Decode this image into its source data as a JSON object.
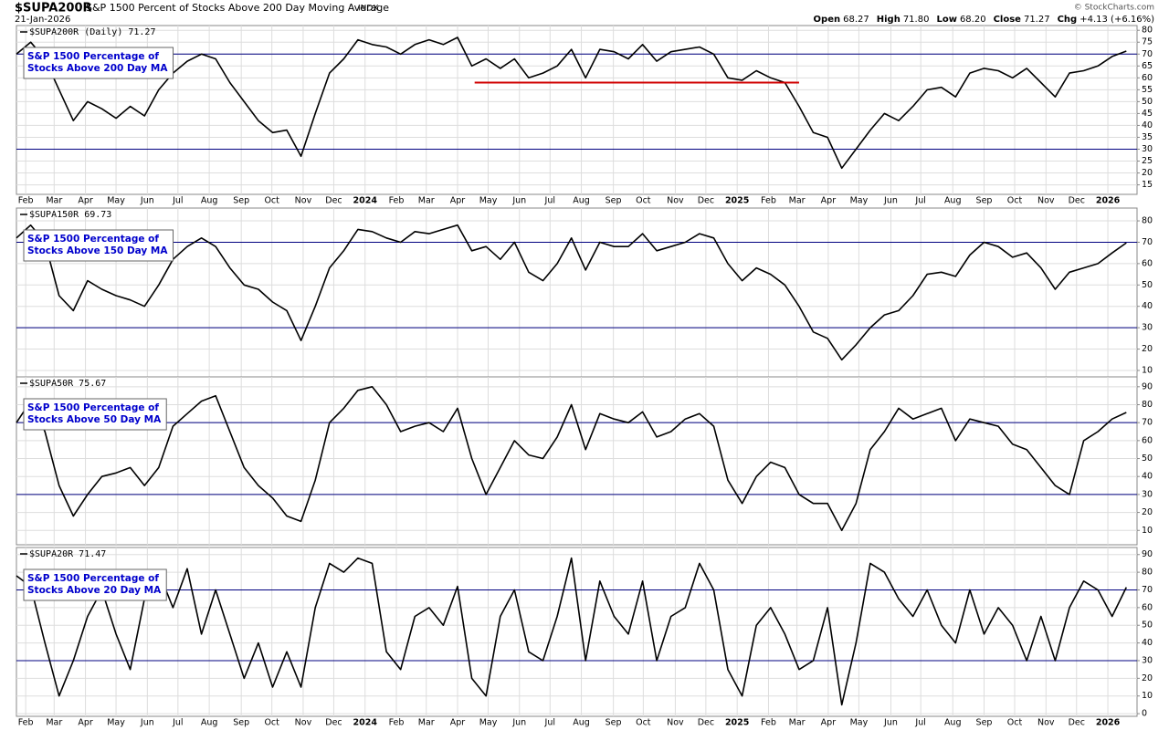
{
  "header": {
    "symbol": "$SUPA200R",
    "name": "S&P 1500 Percent of Stocks Above 200 Day Moving Average",
    "exchange": "INDX",
    "copyright": "© StockCharts.com",
    "date": "21-Jan-2026",
    "quote": [
      {
        "label": "Open",
        "value": "68.27"
      },
      {
        "label": "High",
        "value": "71.80"
      },
      {
        "label": "Low",
        "value": "68.20"
      },
      {
        "label": "Close",
        "value": "71.27"
      },
      {
        "label": "Chg",
        "value": "+4.13 (+6.16%)"
      }
    ]
  },
  "chart_data": [
    {
      "type": "line",
      "title": "$SUPA200R (Daily) 71.27",
      "annotation": [
        "S&P 1500 Percentage of",
        "Stocks Above 200 Day MA"
      ],
      "color": "#000000",
      "grid": true,
      "hlines": [
        70,
        30
      ],
      "hline_color": "#000080",
      "segment": {
        "x": [
          64.4,
          110
        ],
        "y": 58,
        "color": "#d00000"
      },
      "xlim": [
        0,
        157.5
      ],
      "ylim": [
        11,
        82
      ],
      "yticks": [
        15,
        20,
        25,
        30,
        35,
        40,
        45,
        50,
        55,
        60,
        65,
        70,
        75,
        80
      ],
      "xticks": [
        {
          "value": 1.3,
          "label": "Feb"
        },
        {
          "value": 5.3,
          "label": "Mar"
        },
        {
          "value": 9.7,
          "label": "Apr"
        },
        {
          "value": 14,
          "label": "May"
        },
        {
          "value": 18.4,
          "label": "Jun"
        },
        {
          "value": 22.7,
          "label": "Jul"
        },
        {
          "value": 27.1,
          "label": "Aug"
        },
        {
          "value": 31.6,
          "label": "Sep"
        },
        {
          "value": 35.9,
          "label": "Oct"
        },
        {
          "value": 40.3,
          "label": "Nov"
        },
        {
          "value": 44.6,
          "label": "Dec"
        },
        {
          "value": 49,
          "label": "2024"
        },
        {
          "value": 53.4,
          "label": "Feb"
        },
        {
          "value": 57.6,
          "label": "Mar"
        },
        {
          "value": 62,
          "label": "Apr"
        },
        {
          "value": 66.3,
          "label": "May"
        },
        {
          "value": 70.7,
          "label": "Jun"
        },
        {
          "value": 75,
          "label": "Jul"
        },
        {
          "value": 79.4,
          "label": "Aug"
        },
        {
          "value": 83.9,
          "label": "Sep"
        },
        {
          "value": 88.1,
          "label": "Oct"
        },
        {
          "value": 92.6,
          "label": "Nov"
        },
        {
          "value": 96.9,
          "label": "Dec"
        },
        {
          "value": 101.3,
          "label": "2025"
        },
        {
          "value": 105.7,
          "label": "Feb"
        },
        {
          "value": 109.7,
          "label": "Mar"
        },
        {
          "value": 114.1,
          "label": "Apr"
        },
        {
          "value": 118.4,
          "label": "May"
        },
        {
          "value": 122.9,
          "label": "Jun"
        },
        {
          "value": 127.1,
          "label": "Jul"
        },
        {
          "value": 131.6,
          "label": "Aug"
        },
        {
          "value": 136,
          "label": "Sep"
        },
        {
          "value": 140.3,
          "label": "Oct"
        },
        {
          "value": 144.7,
          "label": "Nov"
        },
        {
          "value": 149,
          "label": "Dec"
        },
        {
          "value": 153.4,
          "label": "2026"
        }
      ],
      "x": [
        0,
        2,
        4,
        6,
        8,
        10,
        12,
        14,
        16,
        18,
        20,
        22,
        24,
        26,
        28,
        30,
        32,
        34,
        36,
        38,
        40,
        42,
        44,
        46,
        48,
        50,
        52,
        54,
        56,
        58,
        60,
        62,
        64,
        66,
        68,
        70,
        72,
        74,
        76,
        78,
        80,
        82,
        84,
        86,
        88,
        90,
        92,
        94,
        96,
        98,
        100,
        102,
        104,
        106,
        108,
        110,
        112,
        114,
        116,
        118,
        120,
        122,
        124,
        126,
        128,
        130,
        132,
        134,
        136,
        138,
        140,
        142,
        144,
        146,
        148,
        150,
        152,
        154,
        156
      ],
      "values": [
        70,
        75,
        68,
        55,
        42,
        50,
        47,
        43,
        48,
        44,
        55,
        62,
        67,
        70,
        68,
        58,
        50,
        42,
        37,
        38,
        27,
        45,
        62,
        68,
        76,
        74,
        73,
        70,
        74,
        76,
        74,
        77,
        65,
        68,
        64,
        68,
        60,
        62,
        65,
        72,
        60,
        72,
        71,
        68,
        74,
        67,
        71,
        72,
        73,
        70,
        60,
        59,
        63,
        60,
        58,
        48,
        37,
        35,
        22,
        30,
        38,
        45,
        42,
        48,
        55,
        56,
        52,
        62,
        64,
        63,
        60,
        64,
        58,
        52,
        62,
        63,
        65,
        69,
        71.27
      ]
    },
    {
      "type": "line",
      "title": "$SUPA150R 69.73",
      "annotation": [
        "S&P 1500 Percentage of",
        "Stocks Above 150 Day MA"
      ],
      "color": "#000000",
      "grid": true,
      "hlines": [
        70,
        30
      ],
      "hline_color": "#000080",
      "xlim": [
        0,
        157.5
      ],
      "ylim": [
        7,
        86
      ],
      "yticks": [
        10,
        20,
        30,
        40,
        50,
        60,
        70,
        80
      ],
      "xticks": [
        1.3,
        5.3,
        9.7,
        14,
        18.4,
        22.7,
        27.1,
        31.6,
        35.9,
        40.3,
        44.6,
        49,
        53.4,
        57.6,
        62,
        66.3,
        70.7,
        75,
        79.4,
        83.9,
        88.1,
        92.6,
        96.9,
        101.3,
        105.7,
        109.7,
        114.1,
        118.4,
        122.9,
        127.1,
        131.6,
        136,
        140.3,
        144.7,
        149,
        153.4
      ],
      "x": [
        0,
        2,
        4,
        6,
        8,
        10,
        12,
        14,
        16,
        18,
        20,
        22,
        24,
        26,
        28,
        30,
        32,
        34,
        36,
        38,
        40,
        42,
        44,
        46,
        48,
        50,
        52,
        54,
        56,
        58,
        60,
        62,
        64,
        66,
        68,
        70,
        72,
        74,
        76,
        78,
        80,
        82,
        84,
        86,
        88,
        90,
        92,
        94,
        96,
        98,
        100,
        102,
        104,
        106,
        108,
        110,
        112,
        114,
        116,
        118,
        120,
        122,
        124,
        126,
        128,
        130,
        132,
        134,
        136,
        138,
        140,
        142,
        144,
        146,
        148,
        150,
        152,
        154,
        156
      ],
      "values": [
        72,
        78,
        70,
        45,
        38,
        52,
        48,
        45,
        43,
        40,
        50,
        62,
        68,
        72,
        68,
        58,
        50,
        48,
        42,
        38,
        24,
        40,
        58,
        66,
        76,
        75,
        72,
        70,
        75,
        74,
        76,
        78,
        66,
        68,
        62,
        70,
        56,
        52,
        60,
        72,
        57,
        70,
        68,
        68,
        74,
        66,
        68,
        70,
        74,
        72,
        60,
        52,
        58,
        55,
        50,
        40,
        28,
        25,
        15,
        22,
        30,
        36,
        38,
        45,
        55,
        56,
        54,
        64,
        70,
        68,
        63,
        65,
        58,
        48,
        56,
        58,
        60,
        65,
        69.73
      ]
    },
    {
      "type": "line",
      "title": "$SUPA50R 75.67",
      "annotation": [
        "S&P 1500 Percentage of",
        "Stocks Above 50 Day MA"
      ],
      "color": "#000000",
      "grid": true,
      "hlines": [
        70,
        30
      ],
      "hline_color": "#000080",
      "xlim": [
        0,
        157.5
      ],
      "ylim": [
        2,
        95.5
      ],
      "yticks": [
        10,
        20,
        30,
        40,
        50,
        60,
        70,
        80,
        90
      ],
      "xticks": [
        1.3,
        5.3,
        9.7,
        14,
        18.4,
        22.7,
        27.1,
        31.6,
        35.9,
        40.3,
        44.6,
        49,
        53.4,
        57.6,
        62,
        66.3,
        70.7,
        75,
        79.4,
        83.9,
        88.1,
        92.6,
        96.9,
        101.3,
        105.7,
        109.7,
        114.1,
        118.4,
        122.9,
        127.1,
        131.6,
        136,
        140.3,
        144.7,
        149,
        153.4
      ],
      "x": [
        0,
        2,
        4,
        6,
        8,
        10,
        12,
        14,
        16,
        18,
        20,
        22,
        24,
        26,
        28,
        30,
        32,
        34,
        36,
        38,
        40,
        42,
        44,
        46,
        48,
        50,
        52,
        54,
        56,
        58,
        60,
        62,
        64,
        66,
        68,
        70,
        72,
        74,
        76,
        78,
        80,
        82,
        84,
        86,
        88,
        90,
        92,
        94,
        96,
        98,
        100,
        102,
        104,
        106,
        108,
        110,
        112,
        114,
        116,
        118,
        120,
        122,
        124,
        126,
        128,
        130,
        132,
        134,
        136,
        138,
        140,
        142,
        144,
        146,
        148,
        150,
        152,
        154,
        156
      ],
      "values": [
        70,
        82,
        65,
        35,
        18,
        30,
        40,
        42,
        45,
        35,
        45,
        68,
        75,
        82,
        85,
        65,
        45,
        35,
        28,
        18,
        15,
        38,
        70,
        78,
        88,
        90,
        80,
        65,
        68,
        70,
        65,
        78,
        50,
        30,
        45,
        60,
        52,
        50,
        62,
        80,
        55,
        75,
        72,
        70,
        76,
        62,
        65,
        72,
        75,
        68,
        38,
        25,
        40,
        48,
        45,
        30,
        25,
        25,
        10,
        25,
        55,
        65,
        78,
        72,
        75,
        78,
        60,
        72,
        70,
        68,
        58,
        55,
        45,
        35,
        30,
        60,
        65,
        72,
        75.67
      ]
    },
    {
      "type": "line",
      "title": "$SUPA20R 71.47",
      "annotation": [
        "S&P 1500 Percentage of",
        "Stocks Above 20 Day MA"
      ],
      "color": "#000000",
      "grid": true,
      "hlines": [
        70,
        30
      ],
      "hline_color": "#000080",
      "xlim": [
        0,
        157.5
      ],
      "ylim": [
        -1.5,
        94
      ],
      "yticks": [
        0,
        10,
        20,
        30,
        40,
        50,
        60,
        70,
        80,
        90
      ],
      "xticks": [
        {
          "value": 1.3,
          "label": "Feb"
        },
        {
          "value": 5.3,
          "label": "Mar"
        },
        {
          "value": 9.7,
          "label": "Apr"
        },
        {
          "value": 14,
          "label": "May"
        },
        {
          "value": 18.4,
          "label": "Jun"
        },
        {
          "value": 22.7,
          "label": "Jul"
        },
        {
          "value": 27.1,
          "label": "Aug"
        },
        {
          "value": 31.6,
          "label": "Sep"
        },
        {
          "value": 35.9,
          "label": "Oct"
        },
        {
          "value": 40.3,
          "label": "Nov"
        },
        {
          "value": 44.6,
          "label": "Dec"
        },
        {
          "value": 49,
          "label": "2024"
        },
        {
          "value": 53.4,
          "label": "Feb"
        },
        {
          "value": 57.6,
          "label": "Mar"
        },
        {
          "value": 62,
          "label": "Apr"
        },
        {
          "value": 66.3,
          "label": "May"
        },
        {
          "value": 70.7,
          "label": "Jun"
        },
        {
          "value": 75,
          "label": "Jul"
        },
        {
          "value": 79.4,
          "label": "Aug"
        },
        {
          "value": 83.9,
          "label": "Sep"
        },
        {
          "value": 88.1,
          "label": "Oct"
        },
        {
          "value": 92.6,
          "label": "Nov"
        },
        {
          "value": 96.9,
          "label": "Dec"
        },
        {
          "value": 101.3,
          "label": "2025"
        },
        {
          "value": 105.7,
          "label": "Feb"
        },
        {
          "value": 109.7,
          "label": "Mar"
        },
        {
          "value": 114.1,
          "label": "Apr"
        },
        {
          "value": 118.4,
          "label": "May"
        },
        {
          "value": 122.9,
          "label": "Jun"
        },
        {
          "value": 127.1,
          "label": "Jul"
        },
        {
          "value": 131.6,
          "label": "Aug"
        },
        {
          "value": 136,
          "label": "Sep"
        },
        {
          "value": 140.3,
          "label": "Oct"
        },
        {
          "value": 144.7,
          "label": "Nov"
        },
        {
          "value": 149,
          "label": "Dec"
        },
        {
          "value": 153.4,
          "label": "2026"
        }
      ],
      "x": [
        0,
        2,
        4,
        6,
        8,
        10,
        12,
        14,
        16,
        18,
        20,
        22,
        24,
        26,
        28,
        30,
        32,
        34,
        36,
        38,
        40,
        42,
        44,
        46,
        48,
        50,
        52,
        54,
        56,
        58,
        60,
        62,
        64,
        66,
        68,
        70,
        72,
        74,
        76,
        78,
        80,
        82,
        84,
        86,
        88,
        90,
        92,
        94,
        96,
        98,
        100,
        102,
        104,
        106,
        108,
        110,
        112,
        114,
        116,
        118,
        120,
        122,
        124,
        126,
        128,
        130,
        132,
        134,
        136,
        138,
        140,
        142,
        144,
        146,
        148,
        150,
        152,
        154,
        156
      ],
      "values": [
        78,
        72,
        40,
        10,
        30,
        55,
        70,
        45,
        25,
        65,
        80,
        60,
        82,
        45,
        70,
        45,
        20,
        40,
        15,
        35,
        15,
        60,
        85,
        80,
        88,
        85,
        35,
        25,
        55,
        60,
        50,
        72,
        20,
        10,
        55,
        70,
        35,
        30,
        55,
        88,
        30,
        75,
        55,
        45,
        75,
        30,
        55,
        60,
        85,
        70,
        25,
        10,
        50,
        60,
        45,
        25,
        30,
        60,
        5,
        40,
        85,
        80,
        65,
        55,
        70,
        50,
        40,
        70,
        45,
        60,
        50,
        30,
        55,
        30,
        60,
        75,
        70,
        55,
        71.47
      ]
    }
  ]
}
